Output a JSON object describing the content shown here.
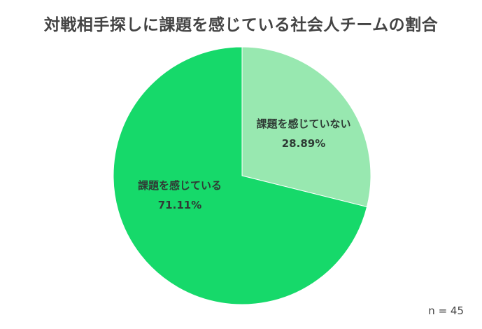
{
  "title": "対戦相手探しに課題を感じている社会人チームの割合",
  "sample_note": "n = 45",
  "colors": {
    "has_issue": "#16d96a",
    "no_issue": "#98e8b0",
    "title_text": "#444444",
    "label_text": "#2f3b35"
  },
  "chart_data": {
    "type": "pie",
    "title": "対戦相手探しに課題を感じている社会人チームの割合",
    "slices": [
      {
        "label": "課題を感じていない",
        "value": 28.89,
        "value_label": "28.89%",
        "color": "#98e8b0"
      },
      {
        "label": "課題を感じている",
        "value": 71.11,
        "value_label": "71.11%",
        "color": "#16d96a"
      }
    ],
    "start_angle": "12 o'clock",
    "direction": "clockwise",
    "legend": "none (labels inside slices)"
  }
}
